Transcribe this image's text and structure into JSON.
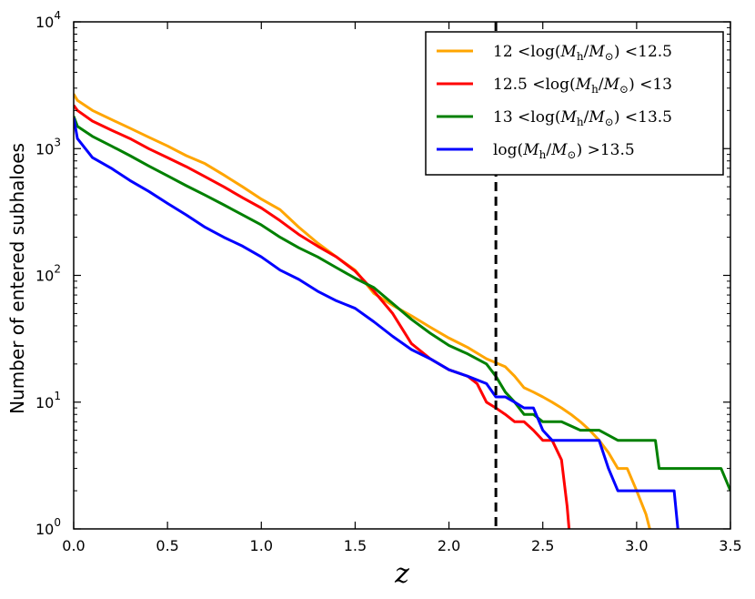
{
  "chart_data": {
    "type": "line",
    "title": "",
    "xlabel": "z",
    "ylabel": "Number of entered subhaloes",
    "xscale": "linear",
    "yscale": "log",
    "xlim": [
      0.0,
      3.5
    ],
    "ylim": [
      1,
      10000
    ],
    "grid": false,
    "legend_position": "top-right",
    "x_ticks": [
      0.0,
      0.5,
      1.0,
      1.5,
      2.0,
      2.5,
      3.0,
      3.5
    ],
    "x_tick_labels": [
      "0.0",
      "0.5",
      "1.0",
      "1.5",
      "2.0",
      "2.5",
      "3.0",
      "3.5"
    ],
    "y_ticks": [
      1,
      10,
      100,
      1000,
      10000
    ],
    "y_tick_base": "10",
    "y_tick_exponents": [
      "0",
      "1",
      "2",
      "3",
      "4"
    ],
    "vertical_line": {
      "x": 2.25,
      "style": "dashed",
      "color": "#000000"
    },
    "series": [
      {
        "name": "12 <log(M_h/M_⊙) <12.5",
        "legend_parts": {
          "pre": "12 <",
          "post": " <12.5"
        },
        "color": "#FFA500",
        "points": [
          [
            0.0,
            2700
          ],
          [
            0.02,
            2400
          ],
          [
            0.1,
            2000
          ],
          [
            0.2,
            1700
          ],
          [
            0.3,
            1450
          ],
          [
            0.4,
            1230
          ],
          [
            0.5,
            1050
          ],
          [
            0.6,
            880
          ],
          [
            0.7,
            760
          ],
          [
            0.8,
            620
          ],
          [
            0.9,
            500
          ],
          [
            1.0,
            400
          ],
          [
            1.1,
            330
          ],
          [
            1.2,
            240
          ],
          [
            1.3,
            180
          ],
          [
            1.4,
            140
          ],
          [
            1.5,
            110
          ],
          [
            1.6,
            72
          ],
          [
            1.7,
            58
          ],
          [
            1.8,
            48
          ],
          [
            1.9,
            39
          ],
          [
            2.0,
            32
          ],
          [
            2.1,
            27
          ],
          [
            2.2,
            22
          ],
          [
            2.3,
            19
          ],
          [
            2.35,
            16
          ],
          [
            2.4,
            13
          ],
          [
            2.45,
            12
          ],
          [
            2.5,
            11
          ],
          [
            2.55,
            10
          ],
          [
            2.6,
            9
          ],
          [
            2.65,
            8
          ],
          [
            2.7,
            7
          ],
          [
            2.75,
            6
          ],
          [
            2.8,
            5
          ],
          [
            2.85,
            4
          ],
          [
            2.9,
            3
          ],
          [
            2.95,
            3
          ],
          [
            3.0,
            2
          ],
          [
            3.05,
            1.3
          ],
          [
            3.07,
            1
          ]
        ]
      },
      {
        "name": "12.5 <log(M_h/M_⊙) <13",
        "legend_parts": {
          "pre": "12.5 <",
          "post": " <13"
        },
        "color": "#FF0000",
        "points": [
          [
            0.0,
            2200
          ],
          [
            0.02,
            2000
          ],
          [
            0.1,
            1650
          ],
          [
            0.2,
            1400
          ],
          [
            0.3,
            1200
          ],
          [
            0.4,
            1000
          ],
          [
            0.5,
            850
          ],
          [
            0.6,
            720
          ],
          [
            0.7,
            600
          ],
          [
            0.8,
            500
          ],
          [
            0.9,
            410
          ],
          [
            1.0,
            340
          ],
          [
            1.1,
            270
          ],
          [
            1.2,
            210
          ],
          [
            1.3,
            170
          ],
          [
            1.4,
            140
          ],
          [
            1.5,
            108
          ],
          [
            1.6,
            75
          ],
          [
            1.7,
            50
          ],
          [
            1.8,
            29
          ],
          [
            1.9,
            22
          ],
          [
            2.0,
            18
          ],
          [
            2.1,
            16
          ],
          [
            2.15,
            14
          ],
          [
            2.2,
            10
          ],
          [
            2.25,
            9
          ],
          [
            2.3,
            8
          ],
          [
            2.35,
            7
          ],
          [
            2.4,
            7
          ],
          [
            2.45,
            6
          ],
          [
            2.5,
            5
          ],
          [
            2.55,
            5
          ],
          [
            2.6,
            3.5
          ],
          [
            2.63,
            1.5
          ],
          [
            2.64,
            1
          ]
        ]
      },
      {
        "name": "13 <log(M_h/M_⊙) <13.5",
        "legend_parts": {
          "pre": "13 <",
          "post": " <13.5"
        },
        "color": "#008000",
        "points": [
          [
            0.0,
            1800
          ],
          [
            0.02,
            1500
          ],
          [
            0.1,
            1250
          ],
          [
            0.2,
            1050
          ],
          [
            0.3,
            880
          ],
          [
            0.4,
            730
          ],
          [
            0.5,
            610
          ],
          [
            0.6,
            510
          ],
          [
            0.7,
            430
          ],
          [
            0.8,
            360
          ],
          [
            0.9,
            300
          ],
          [
            1.0,
            250
          ],
          [
            1.1,
            200
          ],
          [
            1.2,
            165
          ],
          [
            1.3,
            140
          ],
          [
            1.4,
            115
          ],
          [
            1.5,
            95
          ],
          [
            1.6,
            80
          ],
          [
            1.7,
            60
          ],
          [
            1.8,
            45
          ],
          [
            1.9,
            35
          ],
          [
            2.0,
            28
          ],
          [
            2.1,
            24
          ],
          [
            2.2,
            20
          ],
          [
            2.25,
            16
          ],
          [
            2.3,
            12
          ],
          [
            2.35,
            10
          ],
          [
            2.4,
            8
          ],
          [
            2.45,
            8
          ],
          [
            2.5,
            7
          ],
          [
            2.6,
            7
          ],
          [
            2.7,
            6
          ],
          [
            2.8,
            6
          ],
          [
            2.9,
            5
          ],
          [
            3.0,
            5
          ],
          [
            3.1,
            5
          ],
          [
            3.12,
            3
          ],
          [
            3.3,
            3
          ],
          [
            3.45,
            3
          ],
          [
            3.5,
            2
          ]
        ]
      },
      {
        "name": "log(M_h/M_⊙) >13.5",
        "legend_parts": {
          "pre": "",
          "post": " >13.5"
        },
        "color": "#0000FF",
        "points": [
          [
            0.0,
            1750
          ],
          [
            0.02,
            1200
          ],
          [
            0.1,
            850
          ],
          [
            0.2,
            700
          ],
          [
            0.3,
            560
          ],
          [
            0.4,
            460
          ],
          [
            0.5,
            370
          ],
          [
            0.6,
            300
          ],
          [
            0.7,
            240
          ],
          [
            0.8,
            200
          ],
          [
            0.9,
            170
          ],
          [
            1.0,
            140
          ],
          [
            1.1,
            110
          ],
          [
            1.2,
            93
          ],
          [
            1.3,
            75
          ],
          [
            1.4,
            63
          ],
          [
            1.5,
            55
          ],
          [
            1.6,
            43
          ],
          [
            1.7,
            33
          ],
          [
            1.8,
            26
          ],
          [
            1.9,
            22
          ],
          [
            2.0,
            18
          ],
          [
            2.1,
            16
          ],
          [
            2.2,
            14
          ],
          [
            2.25,
            11
          ],
          [
            2.3,
            11
          ],
          [
            2.35,
            10
          ],
          [
            2.4,
            9
          ],
          [
            2.45,
            9
          ],
          [
            2.5,
            6
          ],
          [
            2.55,
            5
          ],
          [
            2.6,
            5
          ],
          [
            2.7,
            5
          ],
          [
            2.8,
            5
          ],
          [
            2.85,
            3
          ],
          [
            2.9,
            2
          ],
          [
            3.0,
            2
          ],
          [
            3.1,
            2
          ],
          [
            3.2,
            2
          ],
          [
            3.22,
            1
          ]
        ]
      }
    ]
  }
}
